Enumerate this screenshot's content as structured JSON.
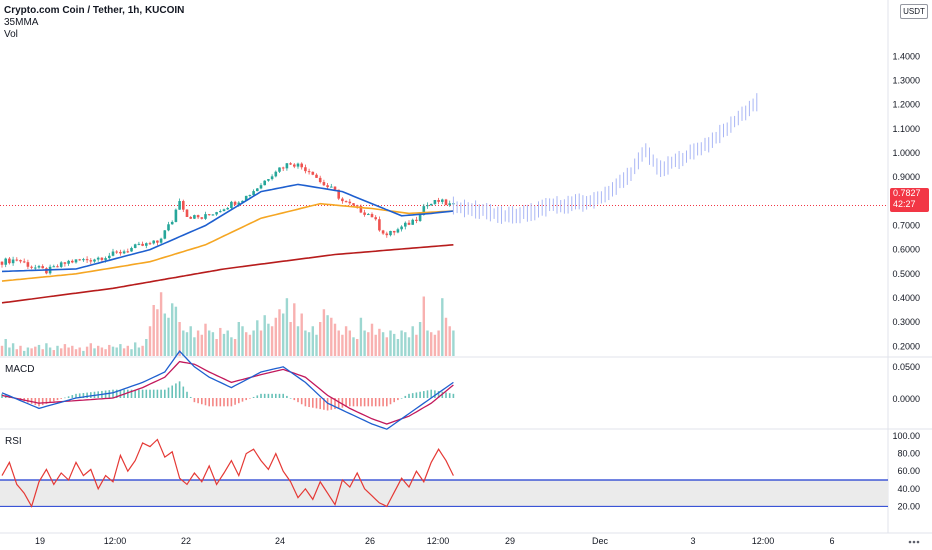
{
  "header": {
    "title": "Crypto.com Coin / Tether, 1h, KUCOIN",
    "indicator_1": "35MMA",
    "indicator_2": "Vol"
  },
  "currency_button": "USDT",
  "last_price": {
    "value": "0.7827",
    "countdown": "42:27"
  },
  "panes": {
    "macd_label": "MACD",
    "rsi_label": "RSI"
  },
  "colors": {
    "up": "#26a69a",
    "down": "#ef5350",
    "ma_fast": "#1e5fcf",
    "ma_mid": "#f5a623",
    "ma_slow": "#b71c1c",
    "projection": "#a9b6f5",
    "macd_line": "#1e5fcf",
    "signal_line": "#c2185b",
    "rsi_line": "#e53935",
    "rsi_band": "#1e3bd0",
    "price_tag": "#f23645"
  },
  "chart_data": {
    "type": "candlestick",
    "price_axis": {
      "ticks": [
        "1.4000",
        "1.3000",
        "1.2000",
        "1.1000",
        "1.0000",
        "0.9000",
        "0.8000",
        "0.7000",
        "0.6000",
        "0.5000",
        "0.4000",
        "0.3000",
        "0.2000"
      ],
      "range": [
        0.16,
        1.55
      ]
    },
    "macd_axis": {
      "ticks": [
        "0.0500",
        "0.0000"
      ]
    },
    "rsi_axis": {
      "ticks": [
        "100.00",
        "80.00",
        "60.00",
        "40.00",
        "20.00"
      ],
      "bands": [
        50,
        20
      ]
    },
    "x_ticks": [
      "19",
      "12:00",
      "22",
      "24",
      "26",
      "12:00",
      "29",
      "Dec",
      "3",
      "12:00",
      "6"
    ],
    "price_path": [
      [
        0,
        0.55
      ],
      [
        4,
        0.56
      ],
      [
        8,
        0.53
      ],
      [
        12,
        0.51
      ],
      [
        18,
        0.55
      ],
      [
        24,
        0.56
      ],
      [
        30,
        0.58
      ],
      [
        36,
        0.61
      ],
      [
        42,
        0.63
      ],
      [
        46,
        0.72
      ],
      [
        48,
        0.81
      ],
      [
        50,
        0.74
      ],
      [
        54,
        0.73
      ],
      [
        58,
        0.76
      ],
      [
        62,
        0.79
      ],
      [
        66,
        0.82
      ],
      [
        70,
        0.87
      ],
      [
        74,
        0.93
      ],
      [
        78,
        0.96
      ],
      [
        80,
        0.95
      ],
      [
        84,
        0.92
      ],
      [
        86,
        0.88
      ],
      [
        90,
        0.84
      ],
      [
        92,
        0.8
      ],
      [
        96,
        0.77
      ],
      [
        100,
        0.74
      ],
      [
        102,
        0.69
      ],
      [
        104,
        0.66
      ],
      [
        108,
        0.69
      ],
      [
        112,
        0.73
      ],
      [
        114,
        0.78
      ],
      [
        118,
        0.8
      ],
      [
        122,
        0.78
      ]
    ],
    "ma_fast": [
      [
        0,
        0.51
      ],
      [
        20,
        0.52
      ],
      [
        40,
        0.6
      ],
      [
        55,
        0.7
      ],
      [
        70,
        0.84
      ],
      [
        80,
        0.87
      ],
      [
        92,
        0.84
      ],
      [
        100,
        0.79
      ],
      [
        108,
        0.74
      ],
      [
        116,
        0.75
      ],
      [
        122,
        0.76
      ]
    ],
    "ma_mid": [
      [
        0,
        0.47
      ],
      [
        20,
        0.5
      ],
      [
        40,
        0.55
      ],
      [
        55,
        0.62
      ],
      [
        70,
        0.73
      ],
      [
        86,
        0.79
      ],
      [
        100,
        0.77
      ],
      [
        110,
        0.75
      ],
      [
        122,
        0.76
      ]
    ],
    "ma_slow": [
      [
        0,
        0.38
      ],
      [
        30,
        0.44
      ],
      [
        60,
        0.52
      ],
      [
        90,
        0.58
      ],
      [
        122,
        0.62
      ]
    ],
    "projection_path": [
      [
        122,
        0.78
      ],
      [
        130,
        0.76
      ],
      [
        136,
        0.74
      ],
      [
        142,
        0.75
      ],
      [
        148,
        0.78
      ],
      [
        154,
        0.79
      ],
      [
        160,
        0.8
      ],
      [
        166,
        0.86
      ],
      [
        170,
        0.92
      ],
      [
        174,
        1.01
      ],
      [
        178,
        0.93
      ],
      [
        184,
        0.98
      ],
      [
        190,
        1.03
      ],
      [
        196,
        1.1
      ],
      [
        200,
        1.16
      ],
      [
        204,
        1.21
      ]
    ],
    "volume": [
      0.12,
      0.2,
      0.1,
      0.15,
      0.08,
      0.12,
      0.06,
      0.1,
      0.09,
      0.11,
      0.13,
      0.08,
      0.15,
      0.1,
      0.07,
      0.12,
      0.09,
      0.14,
      0.1,
      0.12,
      0.08,
      0.1,
      0.06,
      0.11,
      0.15,
      0.09,
      0.12,
      0.1,
      0.08,
      0.13,
      0.11,
      0.1,
      0.14,
      0.09,
      0.12,
      0.08,
      0.16,
      0.1,
      0.12,
      0.2,
      0.35,
      0.6,
      0.55,
      0.75,
      0.5,
      0.45,
      0.62,
      0.58,
      0.4,
      0.3,
      0.28,
      0.35,
      0.22,
      0.3,
      0.25,
      0.38,
      0.3,
      0.28,
      0.2,
      0.33,
      0.26,
      0.3,
      0.22,
      0.2,
      0.4,
      0.35,
      0.28,
      0.25,
      0.3,
      0.42,
      0.3,
      0.48,
      0.38,
      0.35,
      0.45,
      0.55,
      0.5,
      0.68,
      0.4,
      0.62,
      0.35,
      0.5,
      0.3,
      0.28,
      0.35,
      0.25,
      0.4,
      0.55,
      0.48,
      0.45,
      0.38,
      0.3,
      0.25,
      0.35,
      0.3,
      0.22,
      0.2,
      0.45,
      0.3,
      0.28,
      0.38,
      0.25,
      0.32,
      0.28,
      0.22,
      0.3,
      0.26,
      0.2,
      0.3,
      0.28,
      0.22,
      0.35,
      0.25,
      0.4,
      0.7,
      0.3,
      0.28,
      0.25,
      0.3,
      0.68,
      0.45,
      0.35,
      0.3
    ],
    "macd": [
      [
        0,
        0.01
      ],
      [
        10,
        -0.02
      ],
      [
        20,
        0.0
      ],
      [
        30,
        0.01
      ],
      [
        38,
        0.03
      ],
      [
        44,
        0.05
      ],
      [
        48,
        0.09
      ],
      [
        52,
        0.06
      ],
      [
        56,
        0.04
      ],
      [
        62,
        0.02
      ],
      [
        70,
        0.05
      ],
      [
        76,
        0.06
      ],
      [
        82,
        0.03
      ],
      [
        88,
        -0.01
      ],
      [
        94,
        -0.03
      ],
      [
        100,
        -0.05
      ],
      [
        104,
        -0.06
      ],
      [
        110,
        -0.03
      ],
      [
        116,
        0.0
      ],
      [
        122,
        0.03
      ]
    ],
    "signal": [
      [
        0,
        0.005
      ],
      [
        10,
        -0.01
      ],
      [
        20,
        -0.005
      ],
      [
        30,
        0.0
      ],
      [
        38,
        0.02
      ],
      [
        44,
        0.04
      ],
      [
        48,
        0.07
      ],
      [
        52,
        0.065
      ],
      [
        56,
        0.05
      ],
      [
        62,
        0.03
      ],
      [
        70,
        0.045
      ],
      [
        76,
        0.055
      ],
      [
        82,
        0.04
      ],
      [
        88,
        0.005
      ],
      [
        94,
        -0.02
      ],
      [
        100,
        -0.04
      ],
      [
        104,
        -0.05
      ],
      [
        110,
        -0.035
      ],
      [
        116,
        -0.01
      ],
      [
        122,
        0.025
      ]
    ],
    "rsi": [
      [
        0,
        55
      ],
      [
        2,
        70
      ],
      [
        4,
        45
      ],
      [
        6,
        35
      ],
      [
        8,
        20
      ],
      [
        10,
        48
      ],
      [
        12,
        62
      ],
      [
        14,
        45
      ],
      [
        16,
        58
      ],
      [
        18,
        50
      ],
      [
        20,
        70
      ],
      [
        22,
        55
      ],
      [
        24,
        62
      ],
      [
        26,
        40
      ],
      [
        28,
        55
      ],
      [
        30,
        48
      ],
      [
        32,
        78
      ],
      [
        34,
        60
      ],
      [
        36,
        72
      ],
      [
        38,
        92
      ],
      [
        40,
        88
      ],
      [
        42,
        96
      ],
      [
        44,
        76
      ],
      [
        46,
        82
      ],
      [
        48,
        52
      ],
      [
        50,
        45
      ],
      [
        52,
        58
      ],
      [
        54,
        48
      ],
      [
        56,
        66
      ],
      [
        58,
        45
      ],
      [
        60,
        58
      ],
      [
        62,
        72
      ],
      [
        64,
        55
      ],
      [
        66,
        80
      ],
      [
        68,
        85
      ],
      [
        70,
        72
      ],
      [
        72,
        62
      ],
      [
        74,
        80
      ],
      [
        76,
        60
      ],
      [
        78,
        48
      ],
      [
        80,
        30
      ],
      [
        82,
        40
      ],
      [
        84,
        28
      ],
      [
        86,
        48
      ],
      [
        88,
        35
      ],
      [
        90,
        22
      ],
      [
        92,
        50
      ],
      [
        94,
        42
      ],
      [
        96,
        58
      ],
      [
        98,
        40
      ],
      [
        100,
        32
      ],
      [
        102,
        24
      ],
      [
        104,
        20
      ],
      [
        106,
        36
      ],
      [
        108,
        52
      ],
      [
        110,
        42
      ],
      [
        112,
        60
      ],
      [
        114,
        48
      ],
      [
        116,
        70
      ],
      [
        118,
        85
      ],
      [
        120,
        72
      ],
      [
        122,
        55
      ]
    ]
  }
}
